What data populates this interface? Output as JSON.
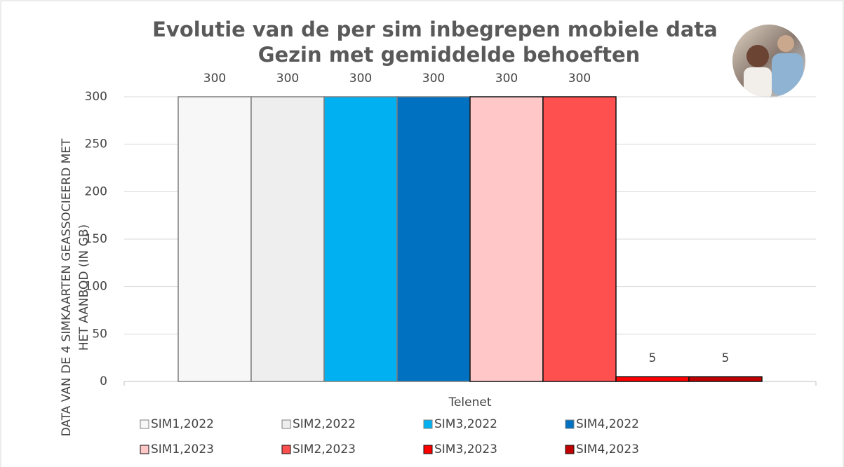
{
  "chart_data": {
    "type": "bar",
    "title": "Evolutie van de per sim inbegrepen mobiele data",
    "subtitle": "Gezin met gemiddelde behoeften",
    "ylabel": [
      "DATA VAN DE 4 SIMKAARTEN GEASSOCIEERD MET",
      "HET AANBOD (IN GB)"
    ],
    "categories": [
      "Telenet"
    ],
    "series": [
      {
        "name": "SIM1,2022",
        "color": "#f7f7f7",
        "values": [
          300
        ]
      },
      {
        "name": "SIM2,2022",
        "color": "#eeeeee",
        "values": [
          300
        ]
      },
      {
        "name": "SIM3,2022",
        "color": "#00b0f0",
        "values": [
          300
        ]
      },
      {
        "name": "SIM4,2022",
        "color": "#0070c0",
        "values": [
          300
        ]
      },
      {
        "name": "SIM1,2023",
        "color": "#ffc7c7",
        "values": [
          300
        ]
      },
      {
        "name": "SIM2,2023",
        "color": "#ff5050",
        "values": [
          300
        ]
      },
      {
        "name": "SIM3,2023",
        "color": "#ff0000",
        "values": [
          5
        ]
      },
      {
        "name": "SIM4,2023",
        "color": "#c00000",
        "values": [
          5
        ]
      }
    ],
    "ylim": [
      0,
      300
    ],
    "yticks": [
      0,
      50,
      100,
      150,
      200,
      250,
      300
    ],
    "grid": true
  }
}
